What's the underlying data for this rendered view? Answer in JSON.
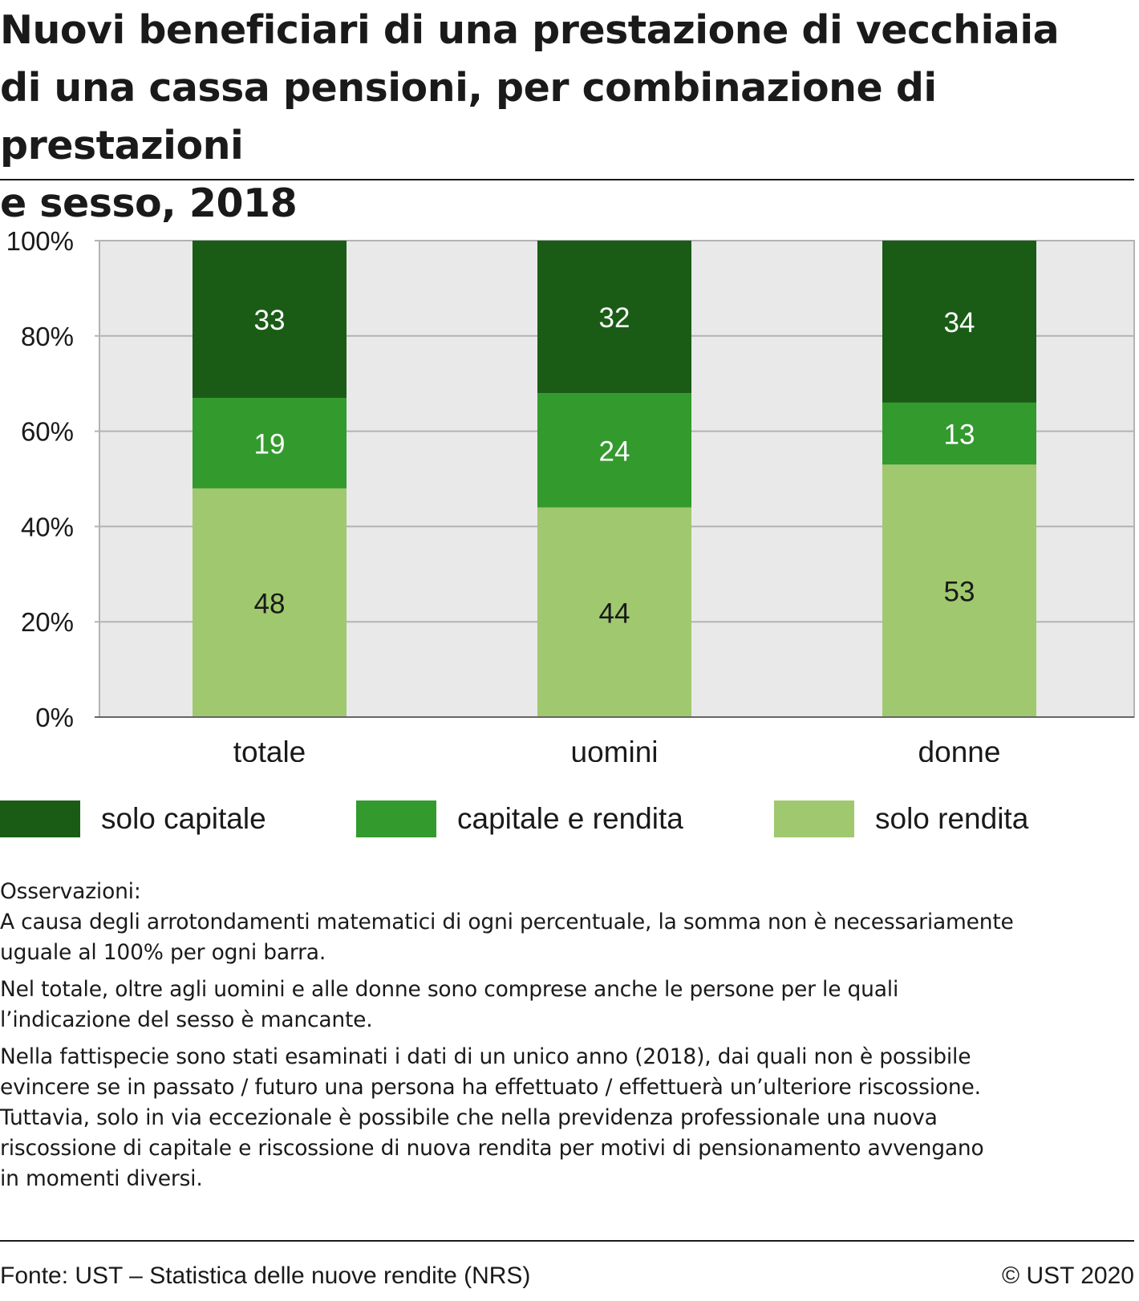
{
  "title": "Nuovi beneficiari di una prestazione di vecchiaia\ndi una cassa pensioni, per combinazione di prestazioni\ne sesso, 2018",
  "colors": {
    "solo_capitale": "#1a5c16",
    "capitale_e_rendita": "#339a2e",
    "solo_rendita": "#a0c86e",
    "plot_bg": "#e9e9e9",
    "grid": "#b3b3b3"
  },
  "chart_data": {
    "type": "bar",
    "stacked": true,
    "categories": [
      "totale",
      "uomini",
      "donne"
    ],
    "series": [
      {
        "name": "solo rendita",
        "values": [
          48,
          44,
          53
        ]
      },
      {
        "name": "capitale e rendita",
        "values": [
          19,
          24,
          13
        ]
      },
      {
        "name": "solo capitale",
        "values": [
          33,
          32,
          34
        ]
      }
    ],
    "title": "Nuovi beneficiari di una prestazione di vecchiaia di una cassa pensioni, per combinazione di prestazioni e sesso, 2018",
    "xlabel": "",
    "ylabel": "",
    "ylim": [
      0,
      100
    ],
    "yticks": [
      "0%",
      "20%",
      "40%",
      "60%",
      "80%",
      "100%"
    ],
    "grid": true,
    "legend": "bottom"
  },
  "legend": [
    {
      "label": "solo capitale"
    },
    {
      "label": "capitale e rendita"
    },
    {
      "label": "solo rendita"
    }
  ],
  "notes": {
    "heading": "Osservazioni:",
    "items": [
      "A causa degli arrotondamenti matematici di ogni percentuale, la somma non è necessariamente\nuguale al 100% per ogni barra.",
      "Nel totale, oltre agli uomini e alle donne sono comprese anche le persone per le quali\nl’indicazione del sesso è mancante.",
      "Nella fattispecie sono stati esaminati i dati di un unico anno (2018), dai quali non è possibile\nevincere se in passato / futuro una persona ha effettuato / effettuerà un’ulteriore riscossione.\nTuttavia, solo in via eccezionale è possibile che nella previdenza professionale una nuova\nriscossione di capitale e riscossione di nuova rendita per motivi di pensionamento avvengano\nin momenti diversi."
    ]
  },
  "footer": {
    "source": "Fonte: UST – Statistica delle nuove rendite (NRS)",
    "copyright": "© UST 2020"
  }
}
